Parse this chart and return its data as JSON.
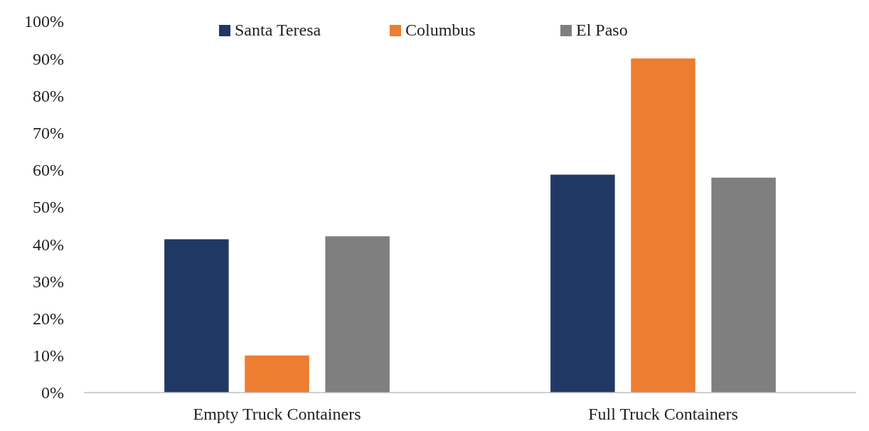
{
  "chart_data": {
    "type": "bar",
    "categories": [
      "Empty Truck Containers",
      "Full Truck Containers"
    ],
    "series": [
      {
        "name": "Santa Teresa",
        "color": "#203864",
        "values": [
          41.3,
          58.7
        ]
      },
      {
        "name": "Columbus",
        "color": "#ed7d31",
        "values": [
          10,
          90
        ]
      },
      {
        "name": "El Paso",
        "color": "#7f7f7f",
        "values": [
          42.1,
          57.9
        ]
      }
    ],
    "ylim": [
      0,
      100
    ],
    "yticks": [
      {
        "value": 0,
        "label": "0%"
      },
      {
        "value": 10,
        "label": "10%"
      },
      {
        "value": 20,
        "label": "20%"
      },
      {
        "value": 30,
        "label": "30%"
      },
      {
        "value": 40,
        "label": "40%"
      },
      {
        "value": 50,
        "label": "50%"
      },
      {
        "value": 60,
        "label": "60%"
      },
      {
        "value": 70,
        "label": "70%"
      },
      {
        "value": 80,
        "label": "80%"
      },
      {
        "value": 90,
        "label": "90%"
      },
      {
        "value": 100,
        "label": "100%"
      }
    ],
    "grid": false,
    "legend": "top"
  }
}
